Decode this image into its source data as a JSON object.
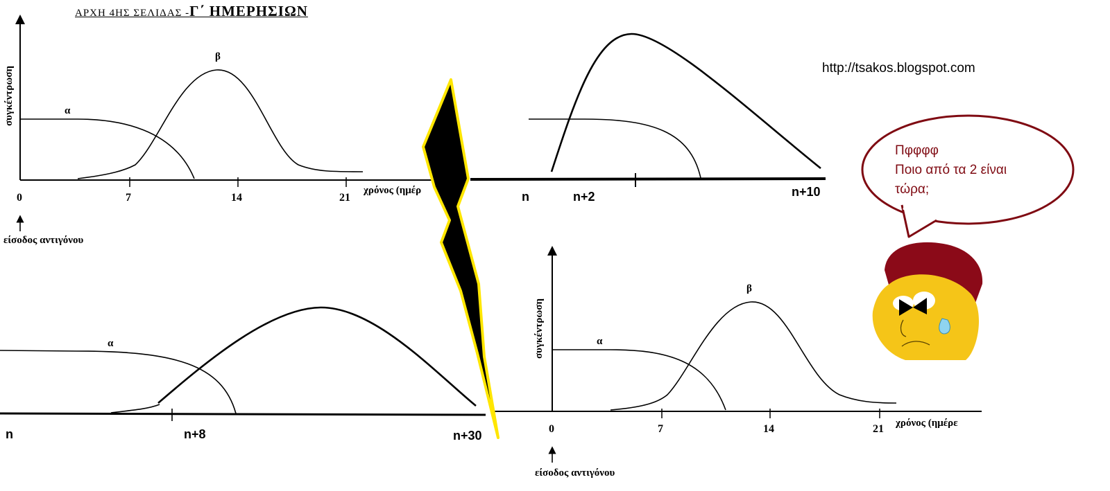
{
  "header": {
    "prefix": "ΑΡΧΗ 4ΗΣ ΣΕΛΙΔΑΣ -",
    "emphasis": "Γ΄ ΗΜΕΡΗΣΙΩΝ"
  },
  "url": "http://tsakos.blogspot.com",
  "top_left": {
    "y_axis_label": "συγκέντρωση",
    "x_ticks": [
      "0",
      "7",
      "14",
      "21"
    ],
    "x_axis_label": "χρόνος (ημέρ",
    "curve_labels": [
      "α",
      "β"
    ],
    "entry_label": "είσοδος αντιγόνου"
  },
  "top_right": {
    "time_labels": [
      "n",
      "n+2",
      "n+10"
    ]
  },
  "bottom_left": {
    "curve_labels": [
      "α"
    ],
    "time_labels": [
      "n",
      "n+8",
      "n+30"
    ]
  },
  "bottom_right": {
    "y_axis_label": "συγκέντρωση",
    "x_ticks": [
      "0",
      "7",
      "14",
      "21"
    ],
    "x_axis_label": "χρόνος (ημέρε",
    "curve_labels": [
      "α",
      "β"
    ],
    "entry_label": "είσοδος αντιγόνου"
  },
  "speech_bubble": {
    "line1": "Πφφφφ",
    "line2": "Ποιο από τα 2 είναι τώρα;"
  },
  "colors": {
    "bubble_border": "#7f0a12",
    "bubble_text": "#7f0a12",
    "face": "#f5c518",
    "hat": "#8b0a18",
    "tear": "#8fd4f0",
    "bolt_fill": "#000000",
    "bolt_outline": "#ffe600"
  }
}
